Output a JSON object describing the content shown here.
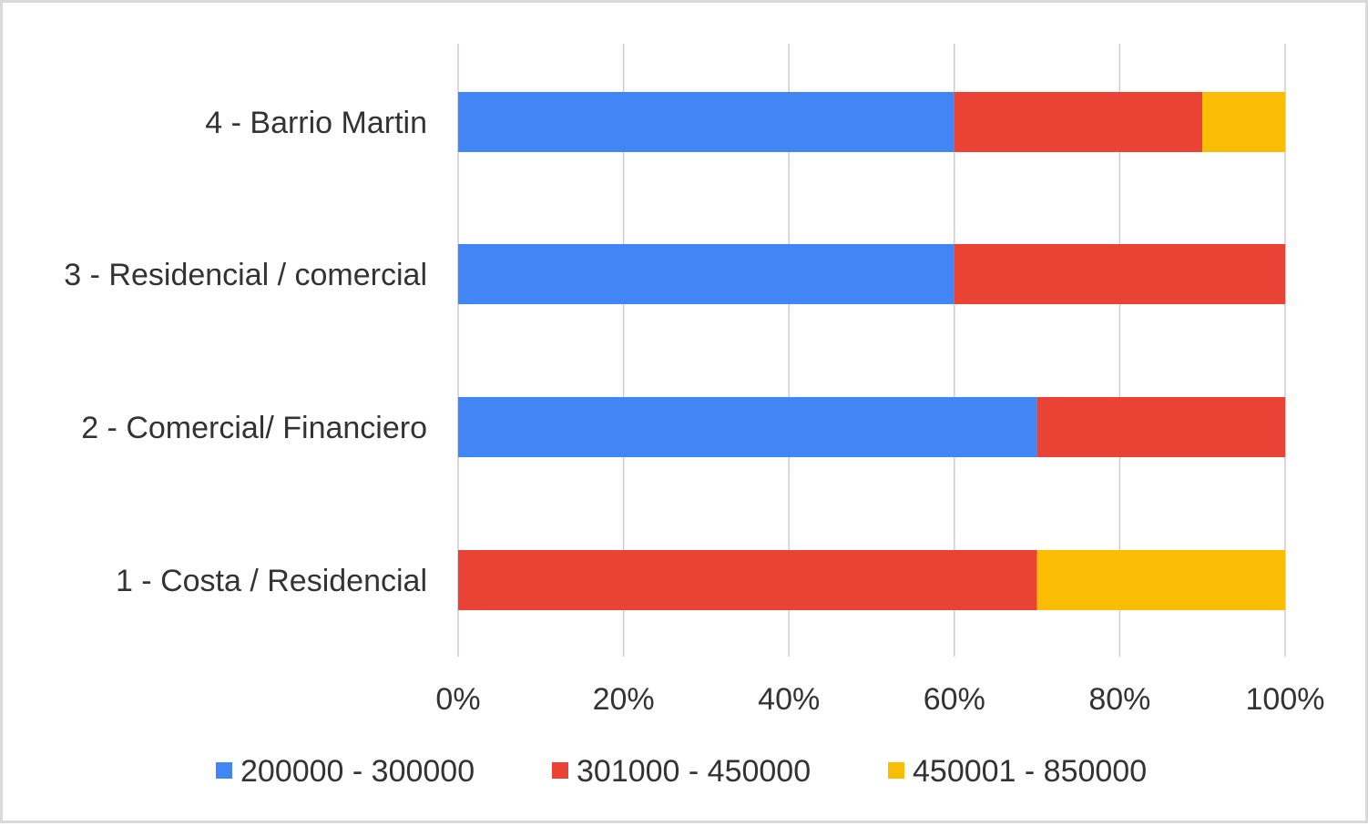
{
  "chart_data": {
    "type": "bar",
    "orientation": "horizontal",
    "stacked": "percent",
    "title": "",
    "xlabel": "",
    "ylabel": "",
    "categories": [
      "4 - Barrio Martin",
      "3 - Residencial / comercial",
      "2 - Comercial/ Financiero",
      "1 - Costa / Residencial"
    ],
    "series": [
      {
        "name": "200000 - 300000",
        "color": "#4285f4",
        "values": [
          60,
          60,
          70,
          0
        ]
      },
      {
        "name": "301000 - 450000",
        "color": "#ea4335",
        "values": [
          30,
          40,
          30,
          70
        ]
      },
      {
        "name": "450001 - 850000",
        "color": "#fbbc04",
        "values": [
          10,
          0,
          0,
          30
        ]
      }
    ],
    "xlim": [
      0,
      100
    ],
    "xticks": [
      0,
      20,
      40,
      60,
      80,
      100
    ],
    "xtick_labels": [
      "0%",
      "20%",
      "40%",
      "60%",
      "80%",
      "100%"
    ],
    "grid": "vertical",
    "legend": "bottom"
  }
}
